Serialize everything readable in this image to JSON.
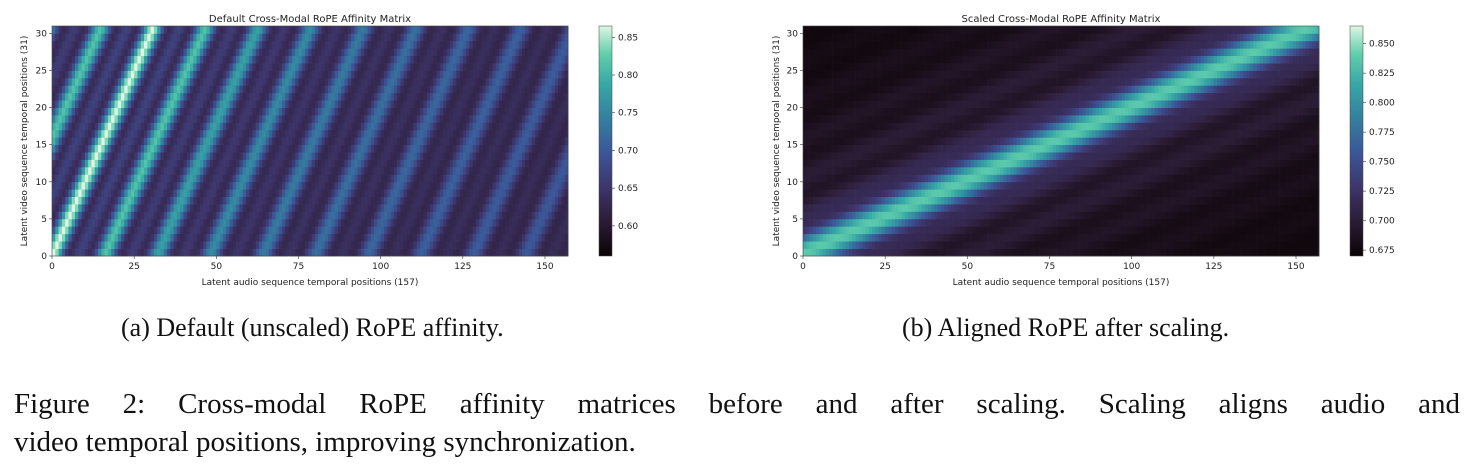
{
  "chart_data": [
    {
      "type": "heatmap",
      "title": "Default Cross-Modal RoPE Affinity Matrix",
      "xlabel": "Latent audio sequence temporal positions (157)",
      "ylabel": "Latent video sequence temporal positions (31)",
      "x_ticks": [
        "0",
        "25",
        "50",
        "75",
        "100",
        "125",
        "150"
      ],
      "y_ticks": [
        "0",
        "5",
        "10",
        "15",
        "20",
        "25",
        "30"
      ],
      "xlim": [
        0,
        157
      ],
      "ylim": [
        0,
        31
      ],
      "colormap": "mako",
      "vmin": 0.56,
      "vmax": 0.865,
      "colorbar_ticks": [
        "0.60",
        "0.65",
        "0.70",
        "0.75",
        "0.80",
        "0.85"
      ],
      "pattern": "diagonal stripes; brightest ridge along x ≈ y, dark stripes repeating every ≈ 15–17 audio positions, darkest near x ≈ 120–150"
    },
    {
      "type": "heatmap",
      "title": "Scaled Cross-Modal RoPE Affinity Matrix",
      "xlabel": "Latent audio sequence temporal positions (157)",
      "ylabel": "Latent video sequence temporal positions (31)",
      "x_ticks": [
        "0",
        "25",
        "50",
        "75",
        "100",
        "125",
        "150"
      ],
      "y_ticks": [
        "0",
        "5",
        "10",
        "15",
        "20",
        "25",
        "30"
      ],
      "xlim": [
        0,
        157
      ],
      "ylim": [
        0,
        31
      ],
      "colormap": "mako",
      "vmin": 0.67,
      "vmax": 0.865,
      "colorbar_ticks": [
        "0.675",
        "0.700",
        "0.725",
        "0.750",
        "0.775",
        "0.800",
        "0.825",
        "0.850"
      ],
      "pattern": "single bright diagonal ridge from (0,0) to (157,31) with parallel darker bands; darkest at top-left and bottom-right corners"
    }
  ],
  "captions": {
    "a": "(a) Default (unscaled) RoPE affinity.",
    "b": "(b) Aligned RoPE after scaling.",
    "figure_line1": "Figure 2: Cross-modal RoPE affinity matrices before and after scaling. Scaling aligns audio and",
    "figure_line2": "video temporal positions, improving synchronization."
  }
}
